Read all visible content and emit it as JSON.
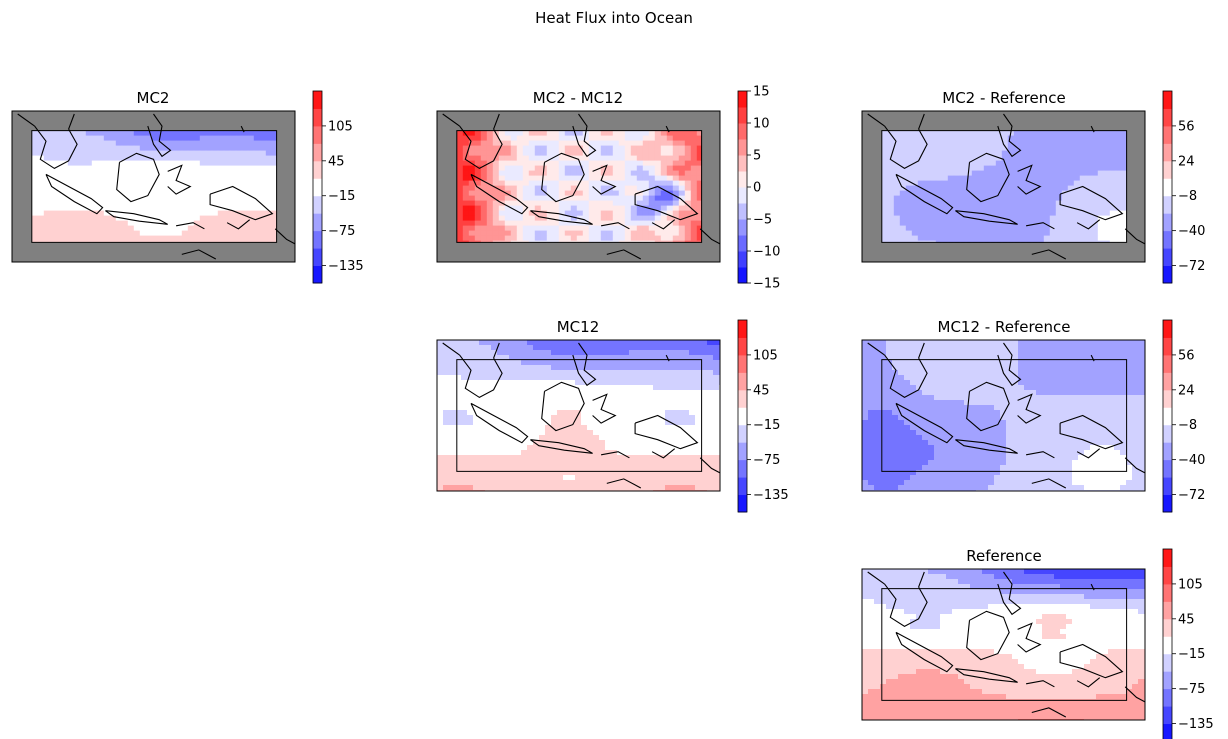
{
  "title": "Heat Flux into Ocean",
  "colormap": {
    "low": "#0000ff",
    "mid": "#ffffff",
    "high": "#ff0000",
    "land_mask": "#808080"
  },
  "chart_data": [
    {
      "type": "heatmap",
      "id": "mc2",
      "title": "MC2",
      "colorbar": {
        "vmin": -165,
        "vmax": 165,
        "ticks": [
          105,
          45,
          -15,
          -75,
          -135
        ]
      },
      "masked_outside_domain": true,
      "field": "mc2"
    },
    {
      "type": "heatmap",
      "id": "mc2-mc12",
      "title": "MC2 - MC12",
      "colorbar": {
        "vmin": -15,
        "vmax": 15,
        "ticks": [
          15,
          10,
          5,
          0,
          -5,
          -10,
          -15
        ]
      },
      "masked_outside_domain": true,
      "field": "diff_mc12"
    },
    {
      "type": "heatmap",
      "id": "mc2-reference",
      "title": "MC2 - Reference",
      "colorbar": {
        "vmin": -88,
        "vmax": 88,
        "ticks": [
          56,
          24,
          -8,
          -40,
          -72
        ]
      },
      "masked_outside_domain": true,
      "field": "diff_ref"
    },
    {
      "type": "heatmap",
      "id": "mc12",
      "title": "MC12",
      "colorbar": {
        "vmin": -165,
        "vmax": 165,
        "ticks": [
          105,
          45,
          -15,
          -75,
          -135
        ]
      },
      "masked_outside_domain": false,
      "field": "mc12"
    },
    {
      "type": "heatmap",
      "id": "mc12-reference",
      "title": "MC12 - Reference",
      "colorbar": {
        "vmin": -88,
        "vmax": 88,
        "ticks": [
          56,
          24,
          -8,
          -40,
          -72
        ]
      },
      "masked_outside_domain": false,
      "field": "diff_ref2"
    },
    {
      "type": "heatmap",
      "id": "reference",
      "title": "Reference",
      "colorbar": {
        "vmin": -165,
        "vmax": 165,
        "ticks": [
          105,
          45,
          -15,
          -75,
          -135
        ]
      },
      "masked_outside_domain": false,
      "field": "reference"
    }
  ]
}
